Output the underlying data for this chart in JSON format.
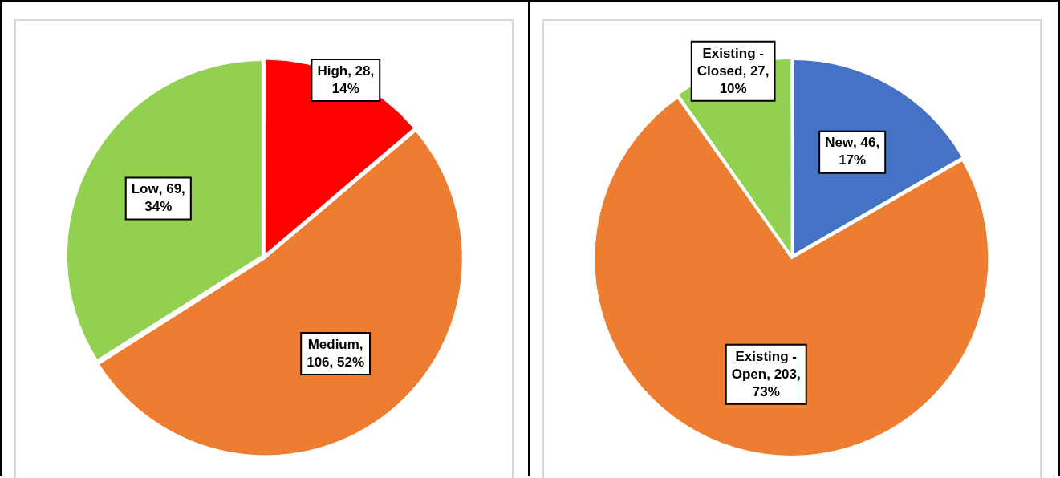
{
  "chart_data": [
    {
      "type": "pie",
      "categories": [
        "High",
        "Medium",
        "Low"
      ],
      "values": [
        28,
        106,
        69
      ],
      "colors": [
        "#ff0000",
        "#ed7d31",
        "#92d050"
      ],
      "value_labels": [
        ", 28, 14%",
        ", 106, 52%",
        ", 69, 34%"
      ],
      "legend": false
    },
    {
      "type": "pie",
      "categories": [
        "New",
        "Existing - Open",
        "Existing - Closed"
      ],
      "values": [
        46,
        203,
        27
      ],
      "colors": [
        "#4472c4",
        "#ed7d31",
        "#92d050"
      ],
      "value_labels": [
        ", 46, 17%",
        ", 203, 73%",
        ", 27, 10%"
      ],
      "legend": false
    }
  ]
}
